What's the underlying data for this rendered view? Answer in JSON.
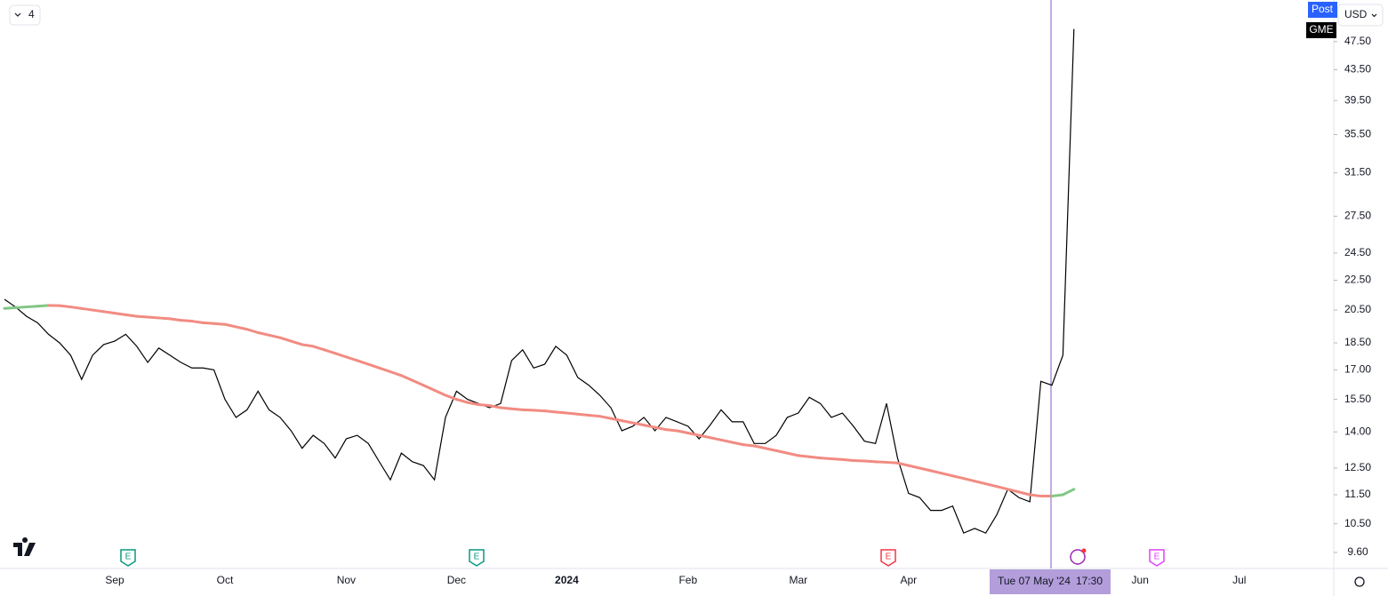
{
  "symbol": "GME",
  "session": "Post",
  "currency": "USD",
  "interval": "4",
  "crosshair_date": "Tue 07 May '24",
  "crosshair_time": "17:30",
  "earnings_labels": [
    "E",
    "E",
    "E",
    "E"
  ],
  "chart_data": {
    "type": "line",
    "log_scale": true,
    "grid": false,
    "categories": [
      null,
      null,
      null,
      null,
      null,
      null,
      null,
      null,
      null,
      null,
      "Sep",
      null,
      null,
      null,
      null,
      null,
      null,
      null,
      null,
      null,
      "Oct",
      null,
      null,
      null,
      null,
      null,
      null,
      null,
      null,
      null,
      null,
      "Nov",
      null,
      null,
      null,
      null,
      null,
      null,
      null,
      null,
      null,
      "Dec",
      null,
      null,
      null,
      null,
      null,
      null,
      null,
      null,
      null,
      "2024",
      null,
      null,
      null,
      null,
      null,
      null,
      null,
      null,
      null,
      null,
      "Feb",
      null,
      null,
      null,
      null,
      null,
      null,
      null,
      null,
      null,
      "Mar",
      null,
      null,
      null,
      null,
      null,
      null,
      null,
      null,
      null,
      "Apr",
      null,
      null,
      null,
      null,
      null,
      null,
      null,
      null,
      null,
      null,
      null,
      null,
      null,
      null,
      null,
      null,
      null,
      null,
      null,
      null,
      "Jun",
      null,
      null,
      null,
      null,
      null,
      null,
      null,
      null,
      "Jul"
    ],
    "series": [
      {
        "name": "GME",
        "color": "#000000",
        "values": [
          21.2,
          20.7,
          20.1,
          19.7,
          19.0,
          18.5,
          17.8,
          16.5,
          17.8,
          18.4,
          18.6,
          19.0,
          18.3,
          17.4,
          18.2,
          17.8,
          17.4,
          17.1,
          17.1,
          17.0,
          15.5,
          14.65,
          15.0,
          15.9,
          15.0,
          14.65,
          14.05,
          13.3,
          13.85,
          13.5,
          12.9,
          13.7,
          13.85,
          13.5,
          12.75,
          12.05,
          13.1,
          12.75,
          12.6,
          12.05,
          14.65,
          15.9,
          15.5,
          15.3,
          15.1,
          15.3,
          17.5,
          18.1,
          17.1,
          17.3,
          18.3,
          17.8,
          16.6,
          16.2,
          15.7,
          15.1,
          14.05,
          14.25,
          14.65,
          14.05,
          14.65,
          14.45,
          14.25,
          13.7,
          14.3,
          15.0,
          14.45,
          14.45,
          13.5,
          13.5,
          13.85,
          14.65,
          14.85,
          15.6,
          15.3,
          14.65,
          14.85,
          14.25,
          13.6,
          13.5,
          15.3,
          12.9,
          11.55,
          11.4,
          10.95,
          10.95,
          11.1,
          10.2,
          10.35,
          10.2,
          10.8,
          11.7,
          11.4,
          11.25,
          16.4,
          16.2,
          17.8,
          49.4,
          null,
          null,
          null,
          null,
          null,
          null,
          null,
          null,
          null,
          null,
          null,
          null,
          null,
          null,
          null
        ]
      },
      {
        "color": "#f28b82",
        "rising_color": "#81c784",
        "values": [
          20.6,
          20.65,
          20.7,
          20.75,
          20.8,
          20.78,
          20.7,
          20.6,
          20.5,
          20.4,
          20.3,
          20.2,
          20.1,
          20.05,
          20.0,
          19.95,
          19.85,
          19.8,
          19.7,
          19.65,
          19.6,
          19.45,
          19.3,
          19.1,
          18.95,
          18.8,
          18.6,
          18.4,
          18.3,
          18.1,
          17.9,
          17.7,
          17.5,
          17.3,
          17.1,
          16.9,
          16.7,
          16.45,
          16.2,
          15.95,
          15.7,
          15.5,
          15.35,
          15.25,
          15.2,
          15.1,
          15.05,
          15.0,
          14.98,
          14.95,
          14.9,
          14.85,
          14.8,
          14.75,
          14.7,
          14.6,
          14.5,
          14.4,
          14.3,
          14.2,
          14.1,
          14.05,
          13.95,
          13.85,
          13.75,
          13.65,
          13.55,
          13.45,
          13.4,
          13.3,
          13.2,
          13.1,
          13.0,
          12.95,
          12.9,
          12.87,
          12.84,
          12.8,
          12.78,
          12.75,
          12.73,
          12.7,
          12.6,
          12.5,
          12.4,
          12.3,
          12.2,
          12.1,
          12.0,
          11.9,
          11.8,
          11.7,
          11.6,
          11.5,
          11.45,
          11.45,
          11.5,
          11.7,
          null,
          null,
          null,
          null,
          null,
          null,
          null,
          null,
          null,
          null,
          null,
          null,
          null,
          null,
          null
        ]
      }
    ],
    "ylim": [
      9.13,
      54.1
    ],
    "yticks": [
      {
        "value": 9.6,
        "label": "9.60"
      },
      {
        "value": 10.5,
        "label": "10.50"
      },
      {
        "value": 11.5,
        "label": "11.50"
      },
      {
        "value": 12.5,
        "label": "12.50"
      },
      {
        "value": 14,
        "label": "14.00"
      },
      {
        "value": 15.5,
        "label": "15.50"
      },
      {
        "value": 17,
        "label": "17.00"
      },
      {
        "value": 18.5,
        "label": "18.50"
      },
      {
        "value": 20.5,
        "label": "20.50"
      },
      {
        "value": 22.5,
        "label": "22.50"
      },
      {
        "value": 24.5,
        "label": "24.50"
      },
      {
        "value": 27.5,
        "label": "27.50"
      },
      {
        "value": 31.5,
        "label": "31.50"
      },
      {
        "value": 35.5,
        "label": "35.50"
      },
      {
        "value": 39.5,
        "label": "39.50"
      },
      {
        "value": 43.5,
        "label": "43.50"
      },
      {
        "value": 47.5,
        "label": "47.50"
      }
    ]
  }
}
